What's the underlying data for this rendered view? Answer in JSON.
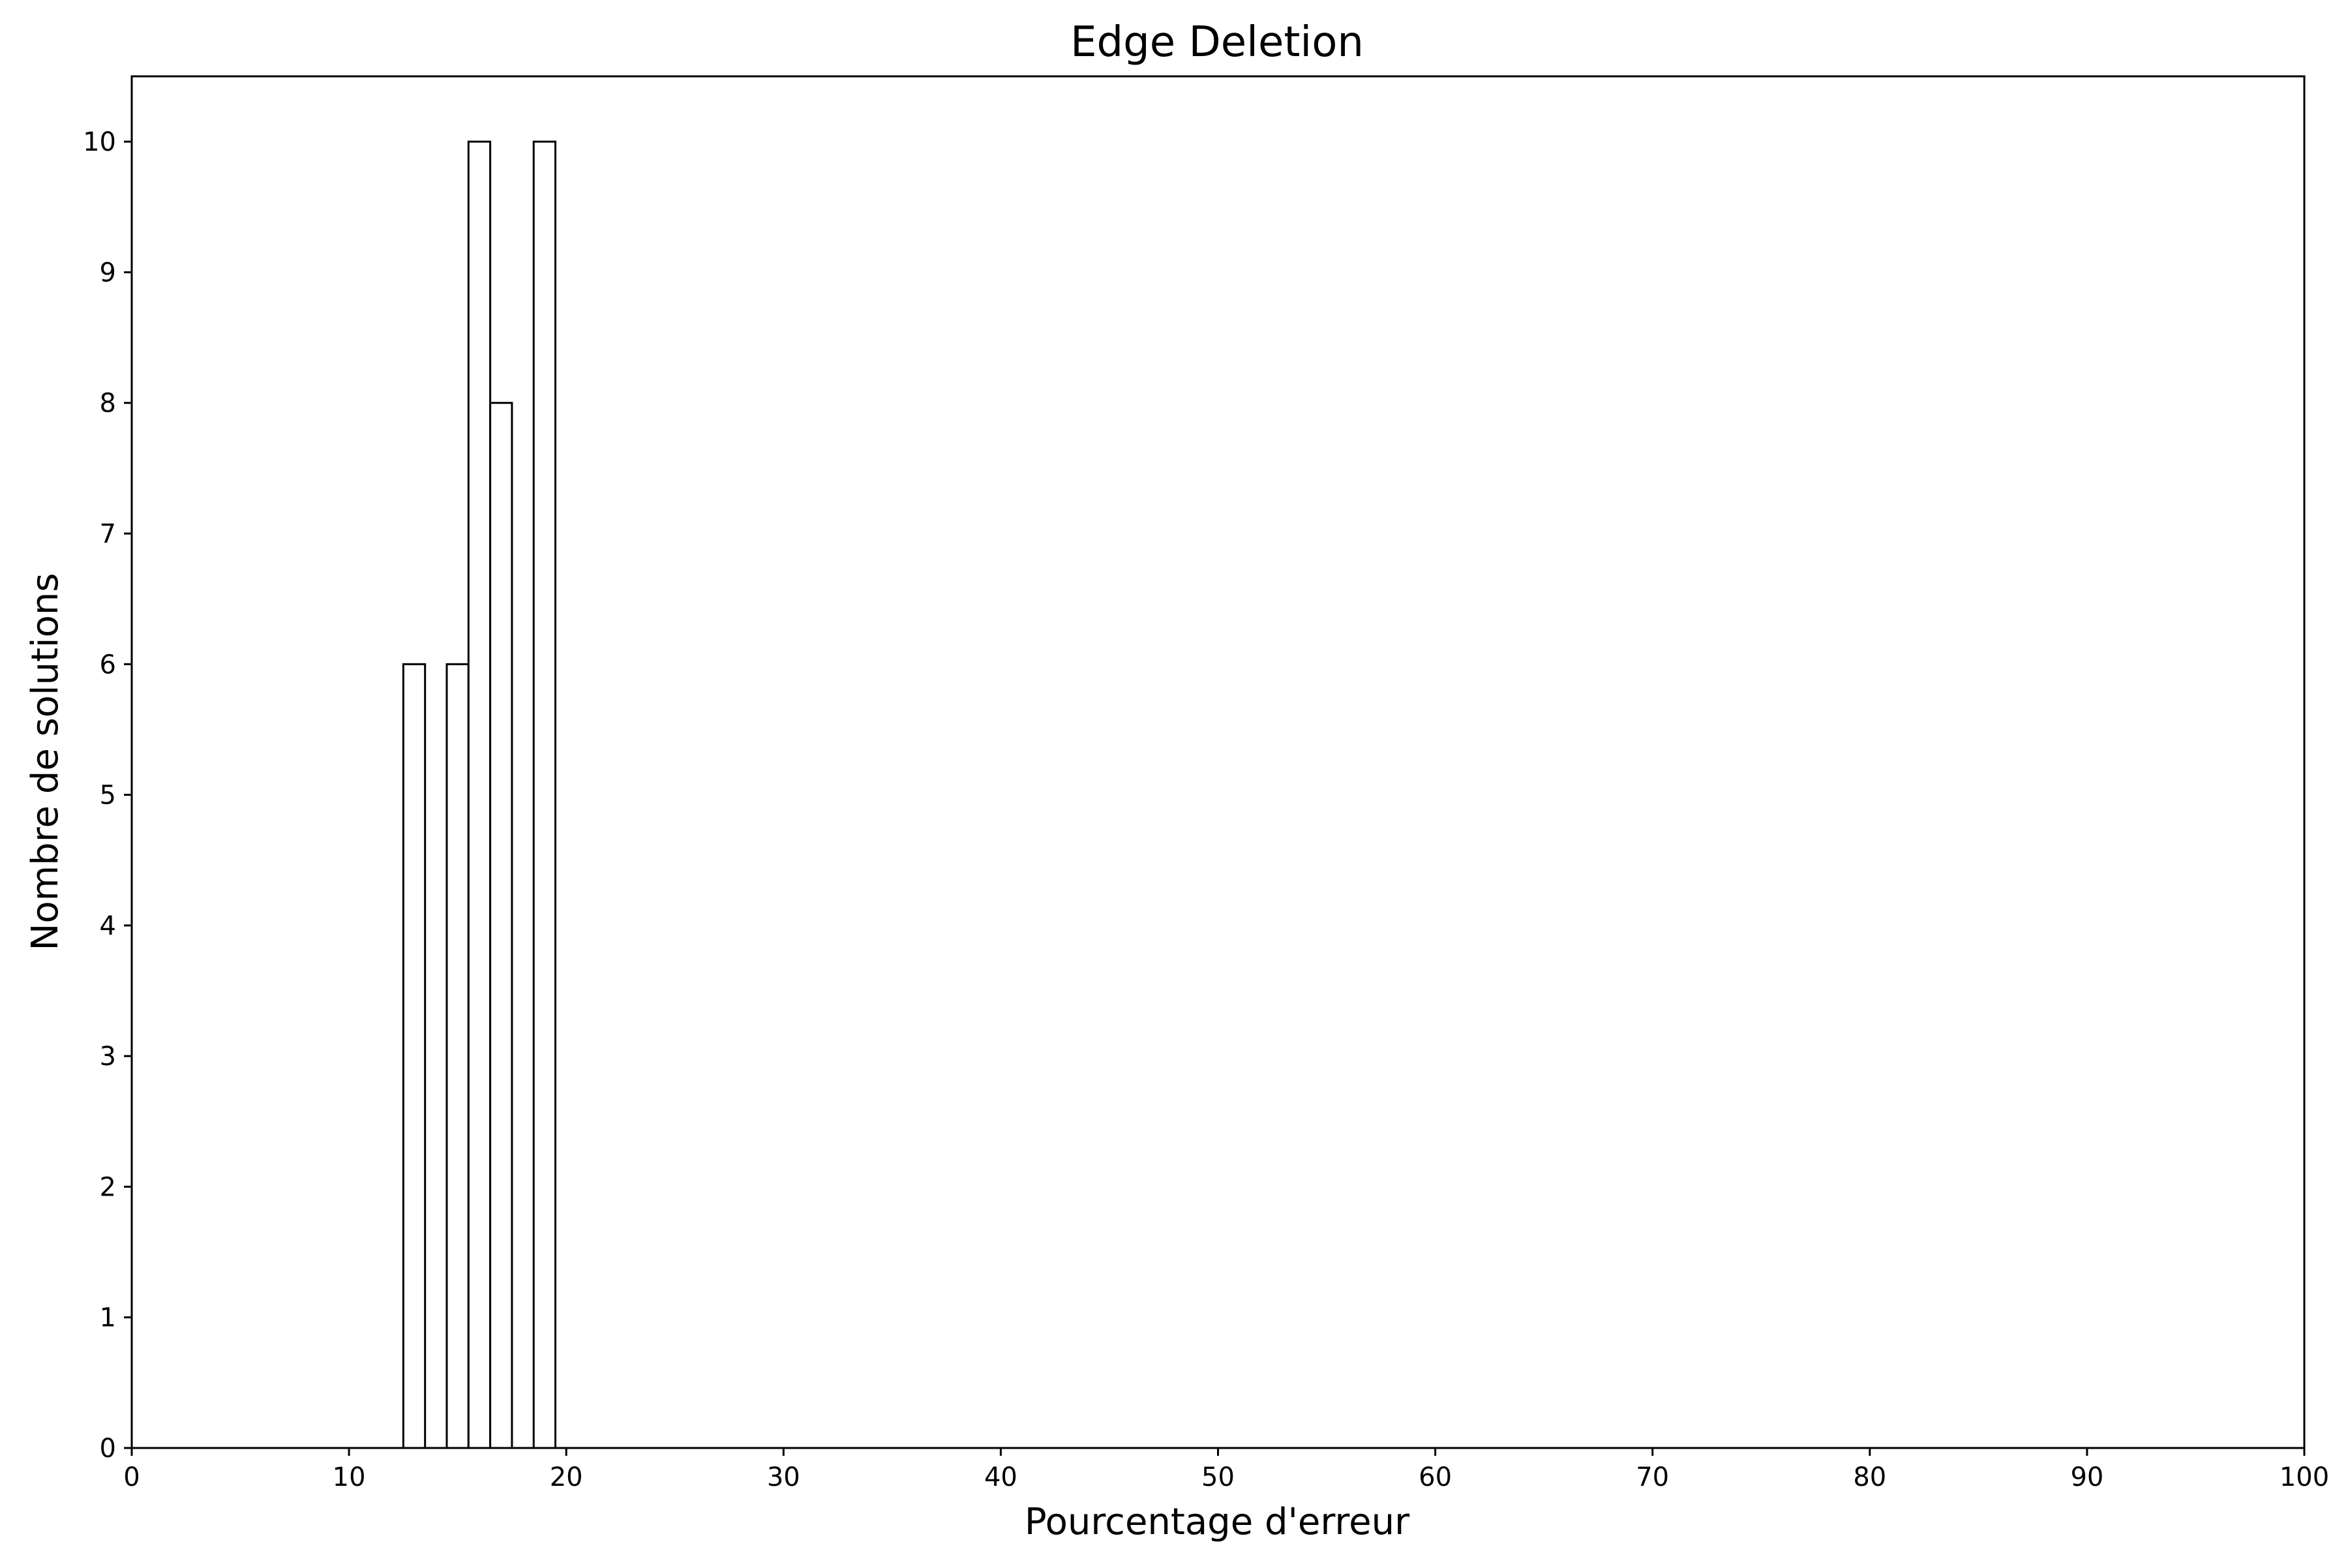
{
  "chart_data": {
    "type": "bar",
    "title": "Edge Deletion",
    "xlabel": "Pourcentage d'erreur",
    "ylabel": "Nombre de solutions",
    "xlim": [
      0,
      100
    ],
    "ylim": [
      0,
      10.5
    ],
    "x_ticks": [
      0,
      10,
      20,
      30,
      40,
      50,
      60,
      70,
      80,
      90,
      100
    ],
    "y_ticks": [
      0,
      1,
      2,
      3,
      4,
      5,
      6,
      7,
      8,
      9,
      10
    ],
    "grid": false,
    "bars": [
      {
        "x_start": 12.5,
        "x_end": 13.5,
        "value": 6
      },
      {
        "x_start": 14.5,
        "x_end": 15.5,
        "value": 6
      },
      {
        "x_start": 15.5,
        "x_end": 16.5,
        "value": 10
      },
      {
        "x_start": 16.5,
        "x_end": 17.5,
        "value": 8
      },
      {
        "x_start": 18.5,
        "x_end": 19.5,
        "value": 10
      }
    ],
    "colors": {
      "bar_fill": "#ffffff",
      "bar_edge": "#000000",
      "axis": "#000000"
    }
  }
}
